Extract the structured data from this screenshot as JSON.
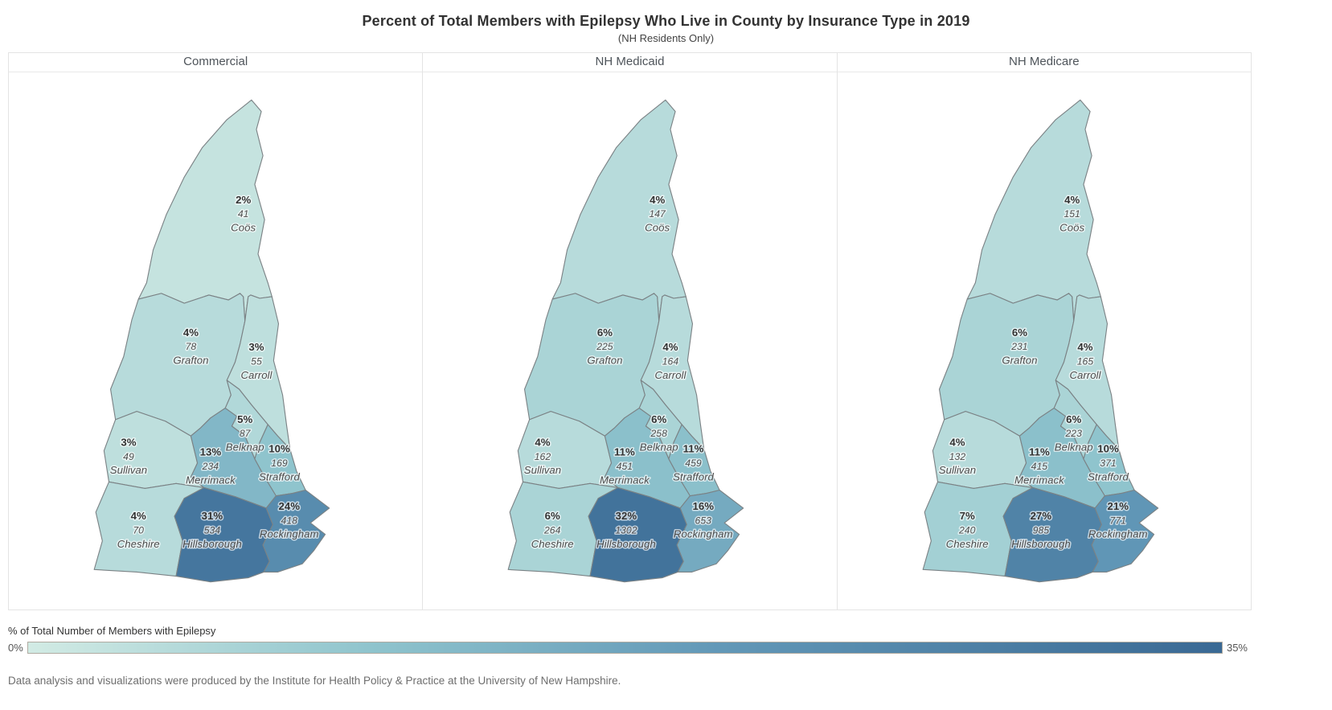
{
  "title": "Percent of Total Members with Epilepsy Who Live in County by Insurance Type in 2019",
  "subtitle": "(NH Residents Only)",
  "footer": "Data analysis and visualizations were produced by the Institute for Health Policy & Practice at the University of New Hampshire.",
  "legend": {
    "title": "% of Total Number of Members with Epilepsy",
    "min_label": "0%",
    "max_label": "35%"
  },
  "chart_data": {
    "type": "heatmap",
    "subtype": "choropleth-map",
    "geography": "New Hampshire counties",
    "title": "Percent of Total Members with Epilepsy Who Live in County by Insurance Type in 2019",
    "subtitle": "(NH Residents Only)",
    "legend_title": "% of Total Number of Members with Epilepsy",
    "legend_position": "bottom",
    "color_scale": {
      "min_pct": 0,
      "max_pct": 35,
      "stops": [
        {
          "pct": 0,
          "color": "#d2ebe4"
        },
        {
          "pct": 10,
          "color": "#8fc4cd"
        },
        {
          "pct": 20,
          "color": "#6399b8"
        },
        {
          "pct": 35,
          "color": "#3a6994"
        }
      ]
    },
    "categories": [
      "Coös",
      "Grafton",
      "Carroll",
      "Belknap",
      "Sullivan",
      "Merrimack",
      "Strafford",
      "Cheshire",
      "Hillsborough",
      "Rockingham"
    ],
    "series": [
      {
        "name": "Commercial",
        "percent": [
          2,
          4,
          3,
          5,
          3,
          13,
          10,
          4,
          31,
          24
        ],
        "members": [
          41,
          78,
          55,
          87,
          49,
          234,
          169,
          70,
          534,
          418
        ]
      },
      {
        "name": "NH Medicaid",
        "percent": [
          4,
          6,
          4,
          6,
          4,
          11,
          11,
          6,
          32,
          16
        ],
        "members": [
          147,
          225,
          164,
          258,
          162,
          451,
          459,
          264,
          1302,
          653
        ]
      },
      {
        "name": "NH Medicare",
        "percent": [
          4,
          6,
          4,
          6,
          4,
          11,
          10,
          7,
          27,
          21
        ],
        "members": [
          151,
          231,
          165,
          223,
          132,
          415,
          371,
          240,
          985,
          771
        ]
      }
    ]
  }
}
